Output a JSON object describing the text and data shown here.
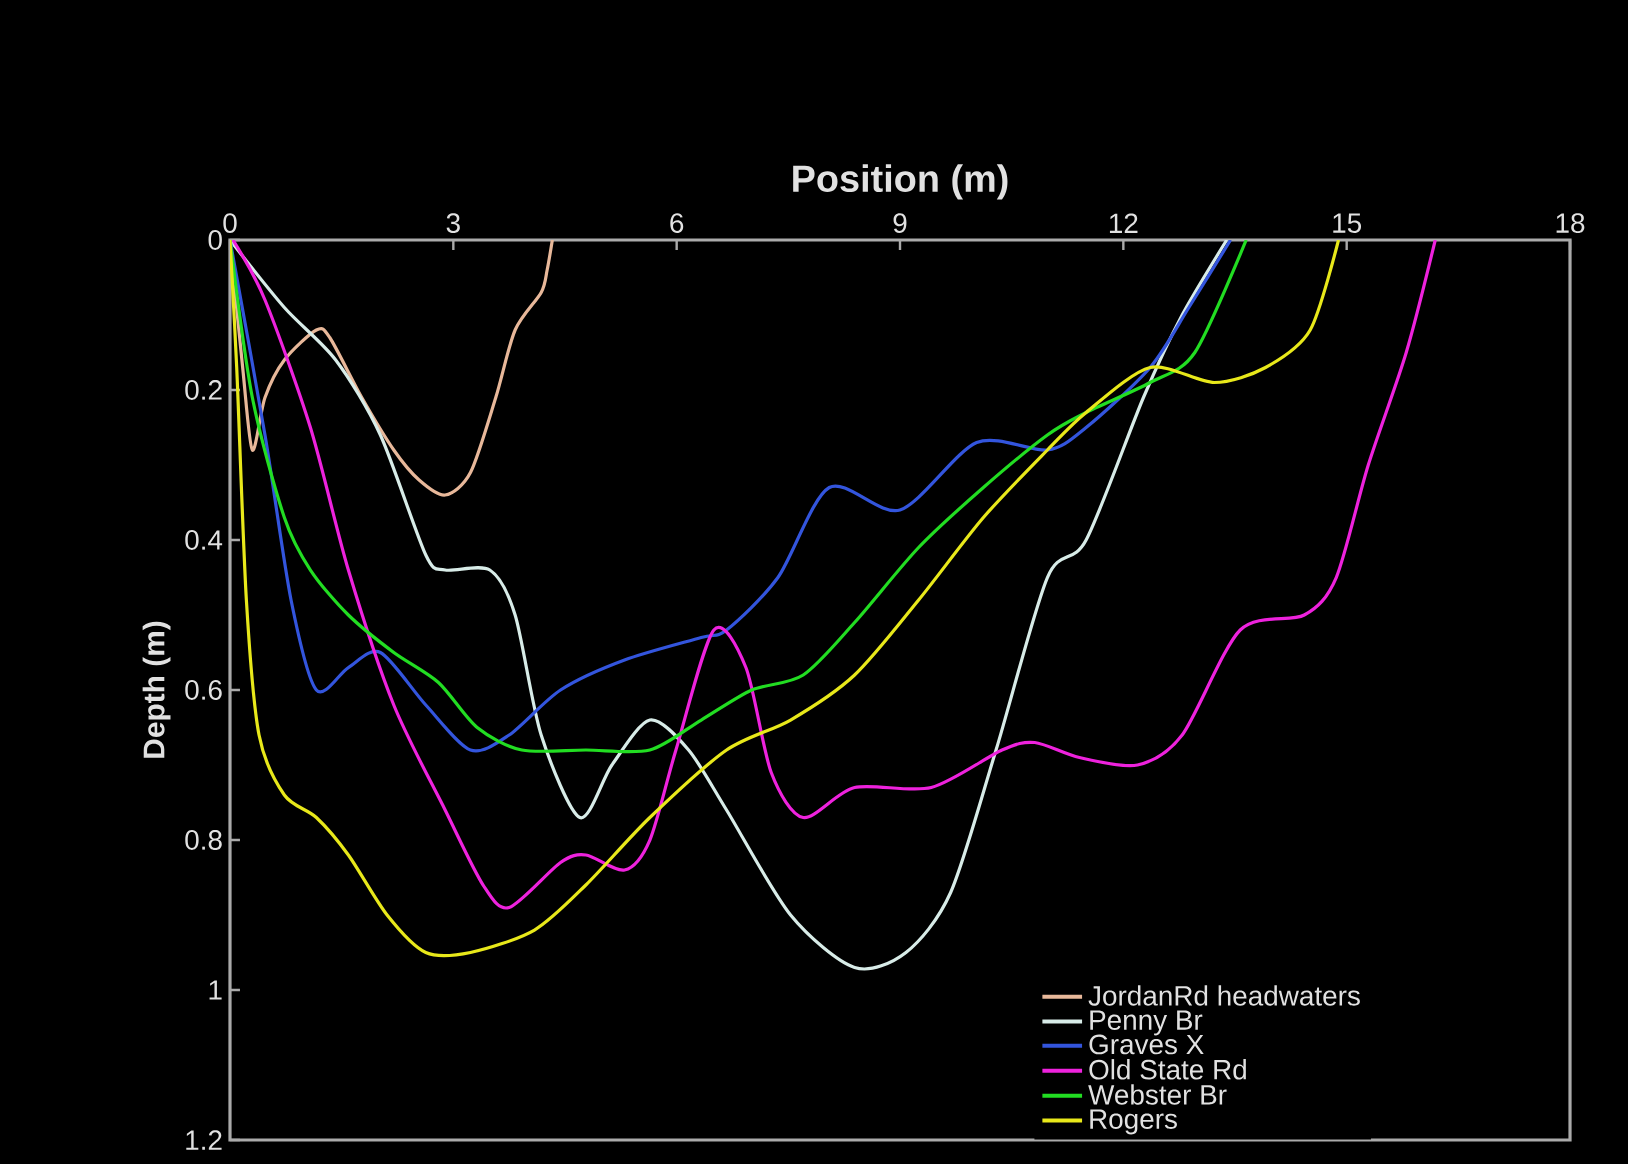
{
  "chart_data": {
    "type": "line",
    "xlabel": "Position (m)",
    "ylabel": "Depth (m)",
    "xlim": [
      0,
      18
    ],
    "xticks": [
      0,
      3,
      6,
      9,
      12,
      15,
      18
    ],
    "ylim": [
      1.2,
      0
    ],
    "yticks": [
      0,
      0.2,
      0.4,
      0.6,
      0.8,
      1,
      1.2
    ],
    "grid": false,
    "legend": "bottom right",
    "marker": "none",
    "line_style": "solid",
    "series": [
      {
        "name": "JordanRd headwaters",
        "color": "#e8b89a",
        "x": [
          0,
          0.17,
          0.3,
          0.47,
          0.73,
          1.16,
          1.34,
          1.77,
          2.2,
          2.54,
          2.89,
          3.23,
          3.57,
          3.83,
          4.18,
          4.26,
          4.33
        ],
        "values": [
          0,
          0.17,
          0.28,
          0.21,
          0.16,
          0.12,
          0.13,
          0.21,
          0.28,
          0.32,
          0.34,
          0.31,
          0.21,
          0.12,
          0.07,
          0.04,
          0
        ]
      },
      {
        "name": "Penny Br",
        "color": "#d8ece8",
        "x": [
          0,
          0.73,
          1.42,
          2.02,
          2.63,
          2.89,
          3.49,
          3.83,
          4.18,
          4.7,
          5.13,
          5.64,
          6.16,
          6.67,
          7.53,
          8.39,
          9.08,
          9.68,
          10.29,
          10.98,
          11.5,
          12.27,
          12.79,
          13.39
        ],
        "values": [
          0,
          0.09,
          0.16,
          0.26,
          0.42,
          0.44,
          0.44,
          0.5,
          0.66,
          0.77,
          0.7,
          0.64,
          0.68,
          0.76,
          0.9,
          0.97,
          0.95,
          0.87,
          0.68,
          0.45,
          0.4,
          0.21,
          0.1,
          0
        ]
      },
      {
        "name": "Graves X",
        "color": "#3355dd",
        "x": [
          0,
          0.47,
          0.82,
          1.16,
          1.59,
          2.02,
          2.63,
          3.23,
          3.75,
          4.44,
          5.3,
          6.33,
          6.67,
          7.36,
          8.05,
          9.0,
          10.03,
          10.98,
          11.5,
          12.36,
          12.88,
          13.44
        ],
        "values": [
          0,
          0.26,
          0.48,
          0.6,
          0.57,
          0.55,
          0.62,
          0.68,
          0.66,
          0.6,
          0.56,
          0.53,
          0.52,
          0.45,
          0.33,
          0.36,
          0.27,
          0.28,
          0.25,
          0.17,
          0.09,
          0
        ]
      },
      {
        "name": "Old State Rd",
        "color": "#ee22dd",
        "x": [
          0.04,
          0.47,
          1.08,
          1.59,
          2.2,
          2.89,
          3.4,
          3.75,
          4.44,
          4.78,
          5.3,
          5.64,
          5.99,
          6.5,
          6.93,
          7.27,
          7.7,
          8.39,
          9.42,
          10.37,
          10.81,
          11.41,
          12.19,
          12.79,
          13.57,
          14.43,
          14.86,
          15.29,
          15.8,
          16.19
        ],
        "values": [
          0,
          0.08,
          0.25,
          0.44,
          0.62,
          0.76,
          0.86,
          0.89,
          0.83,
          0.82,
          0.84,
          0.8,
          0.68,
          0.52,
          0.57,
          0.71,
          0.77,
          0.73,
          0.73,
          0.68,
          0.67,
          0.69,
          0.7,
          0.66,
          0.52,
          0.5,
          0.45,
          0.3,
          0.15,
          0
        ]
      },
      {
        "name": "Webster Br",
        "color": "#22dd22",
        "x": [
          0,
          0.3,
          0.73,
          1.08,
          1.59,
          2.2,
          2.8,
          3.32,
          3.92,
          4.78,
          5.64,
          6.33,
          7.01,
          7.7,
          8.39,
          9.25,
          10.12,
          10.98,
          11.5,
          12.36,
          12.96,
          13.65
        ],
        "values": [
          0,
          0.21,
          0.37,
          0.44,
          0.5,
          0.55,
          0.59,
          0.65,
          0.68,
          0.68,
          0.68,
          0.64,
          0.6,
          0.58,
          0.51,
          0.41,
          0.33,
          0.26,
          0.23,
          0.19,
          0.15,
          0
        ]
      },
      {
        "name": "Rogers",
        "color": "#e8e81a",
        "x": [
          0,
          0.09,
          0.22,
          0.39,
          0.73,
          1.16,
          1.59,
          2.11,
          2.63,
          3.23,
          4.09,
          4.78,
          5.64,
          6.67,
          7.53,
          8.39,
          9.25,
          10.12,
          10.98,
          11.5,
          12.36,
          13.22,
          13.91,
          14.51,
          14.89
        ],
        "values": [
          0,
          0.17,
          0.48,
          0.66,
          0.74,
          0.77,
          0.82,
          0.9,
          0.95,
          0.95,
          0.92,
          0.86,
          0.77,
          0.68,
          0.64,
          0.58,
          0.48,
          0.37,
          0.28,
          0.23,
          0.17,
          0.19,
          0.17,
          0.12,
          0
        ]
      }
    ]
  }
}
